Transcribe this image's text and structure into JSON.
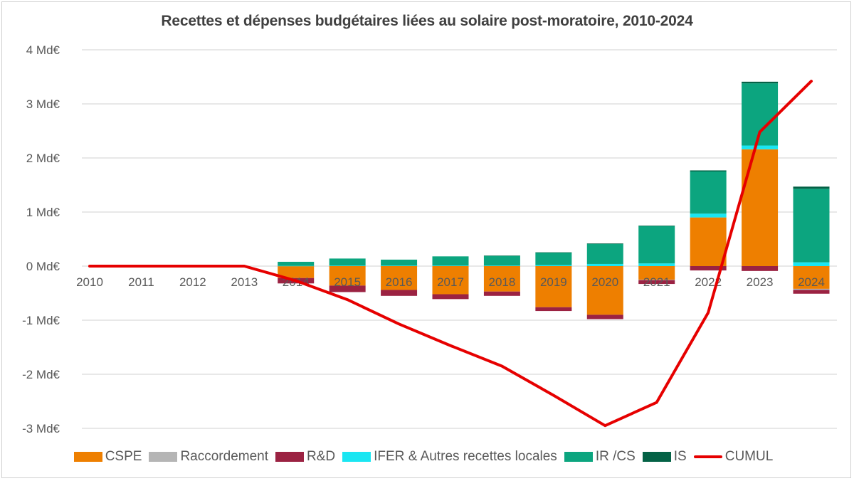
{
  "chart_data": {
    "type": "bar",
    "subtype": "stacked-bar-with-line",
    "title": "Recettes et dépenses budgétaires liées au solaire post-moratoire, 2010-2024",
    "xlabel": "",
    "ylabel": "",
    "ylim": [
      -3,
      4
    ],
    "yticks": [
      4,
      3,
      2,
      1,
      0,
      -1,
      -2,
      -3
    ],
    "ytick_labels": [
      "4 Md€",
      "3 Md€",
      "2 Md€",
      "1 Md€",
      "0 Md€",
      "-1 Md€",
      "-2 Md€",
      "-3 Md€"
    ],
    "grid": true,
    "legend_position": "bottom",
    "categories": [
      "2010",
      "2011",
      "2012",
      "2013",
      "2014",
      "2015",
      "2016",
      "2017",
      "2018",
      "2019",
      "2020",
      "2021",
      "2022",
      "2023",
      "2024"
    ],
    "series": [
      {
        "name": "CSPE",
        "kind": "bar",
        "color": "#EE7F00",
        "values": [
          0,
          0,
          0,
          0,
          -0.22,
          -0.36,
          -0.44,
          -0.52,
          -0.47,
          -0.76,
          -0.9,
          -0.25,
          0.9,
          2.16,
          -0.42
        ]
      },
      {
        "name": "Raccordement",
        "kind": "bar",
        "color": "#B5B5B5",
        "values": [
          0,
          0,
          0,
          0,
          0,
          0,
          0,
          0,
          0,
          0,
          0,
          -0.01,
          0,
          0,
          -0.02
        ]
      },
      {
        "name": "R&D",
        "kind": "bar",
        "color": "#9B2242",
        "values": [
          0,
          0,
          0,
          0,
          -0.1,
          -0.12,
          -0.11,
          -0.09,
          -0.08,
          -0.07,
          -0.08,
          -0.07,
          -0.08,
          -0.09,
          -0.07
        ]
      },
      {
        "name": "IFER & Autres recettes locales",
        "kind": "bar",
        "color": "#1AE6F2",
        "values": [
          0,
          0,
          0,
          0,
          0.005,
          0.01,
          0.01,
          0.01,
          0.01,
          0.02,
          0.04,
          0.05,
          0.07,
          0.07,
          0.07
        ]
      },
      {
        "name": "IR /CS",
        "kind": "bar",
        "color": "#0CA57F",
        "values": [
          0,
          0,
          0,
          0,
          0.075,
          0.13,
          0.11,
          0.17,
          0.18,
          0.23,
          0.37,
          0.69,
          0.78,
          1.15,
          1.36
        ]
      },
      {
        "name": "IS",
        "kind": "bar",
        "color": "#046246",
        "values": [
          0,
          0,
          0,
          0,
          0,
          0,
          0,
          0,
          0.005,
          0.005,
          0.01,
          0.01,
          0.02,
          0.03,
          0.04
        ]
      },
      {
        "name": "CUMUL",
        "kind": "line",
        "color": "#E60000",
        "values": [
          0,
          0,
          0,
          0,
          -0.27,
          -0.62,
          -1.07,
          -1.47,
          -1.85,
          -2.39,
          -2.95,
          -2.52,
          -0.86,
          2.48,
          3.42
        ]
      }
    ]
  }
}
